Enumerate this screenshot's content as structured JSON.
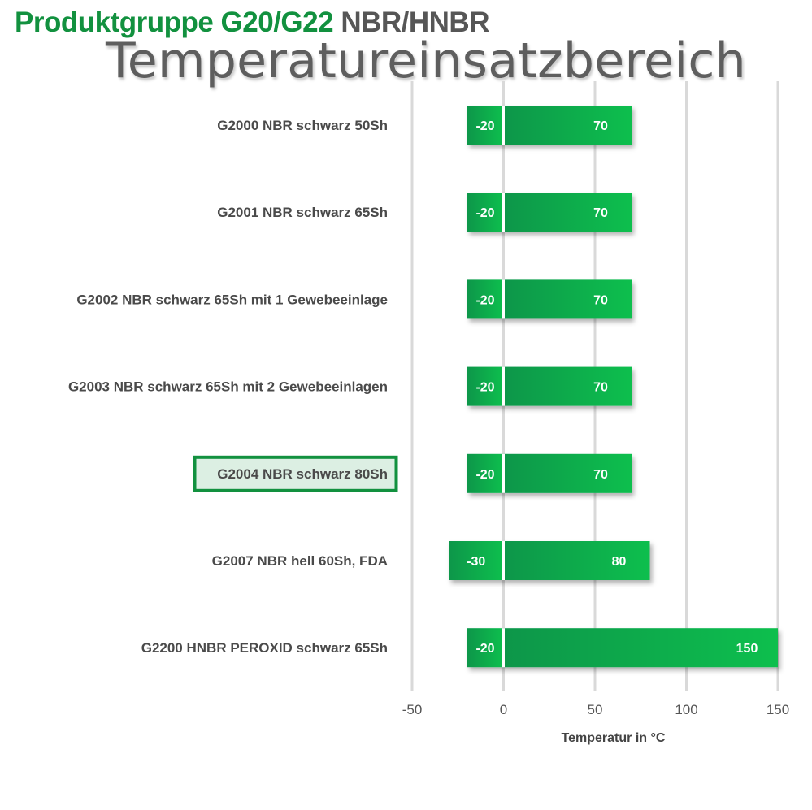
{
  "header": {
    "group_label": "Produktgruppe G20/G22",
    "material_label": "NBR/HNBR",
    "title": "Temperatureinsatzbereich"
  },
  "colors": {
    "brand_green": "#12913f",
    "bar_dark": "#08964a",
    "bar_light": "#0bbf4e",
    "highlight_border": "#12913f",
    "highlight_fill": "#dcefe3",
    "grid": "#d9d9d9"
  },
  "chart_data": {
    "type": "bar",
    "orientation": "horizontal",
    "subtype": "floating-range",
    "categories": [
      "G2000 NBR schwarz 50Sh",
      "G2001 NBR schwarz 65Sh",
      "G2002 NBR schwarz 65Sh mit 1 Gewebeeinlage",
      "G2003 NBR schwarz 65Sh mit 2 Gewebeeinlagen",
      "G2004 NBR schwarz 80Sh",
      "G2007 NBR hell 60Sh, FDA",
      "G2200 HNBR PEROXID schwarz 65Sh"
    ],
    "min": [
      -20,
      -20,
      -20,
      -20,
      -20,
      -30,
      -20
    ],
    "max": [
      70,
      70,
      70,
      70,
      70,
      80,
      150
    ],
    "highlighted_category": "G2004 NBR schwarz 80Sh",
    "xlabel": "Temperatur in °C",
    "xlim": [
      -50,
      150
    ],
    "xticks": [
      -50,
      0,
      50,
      100,
      150
    ],
    "grid": true
  }
}
